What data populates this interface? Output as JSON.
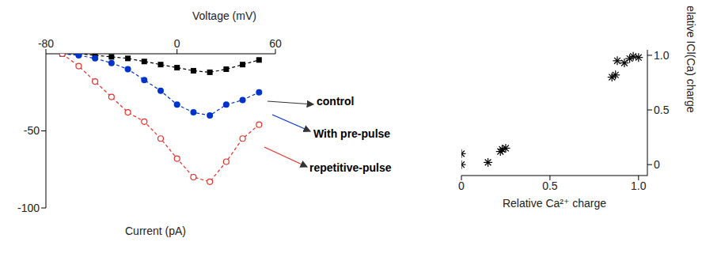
{
  "chart_data": [
    {
      "type": "line",
      "x_label": "Voltage (mV)",
      "y_label": "Current (pA)",
      "x": [
        -70,
        -60,
        -50,
        -40,
        -30,
        -20,
        -10,
        0,
        10,
        20,
        30,
        40,
        50
      ],
      "xlim": [
        -80,
        60
      ],
      "xticks": [
        -80,
        0,
        60
      ],
      "ylim": [
        -100,
        0
      ],
      "yticks": [
        -100,
        -50
      ],
      "grid": false,
      "series": [
        {
          "name": "control",
          "color": "#000000",
          "marker": "square",
          "line_style": "dashed",
          "values": [
            0,
            0,
            -1,
            -2,
            -3,
            -5,
            -7,
            -9,
            -11,
            -12,
            -10,
            -7,
            -4
          ]
        },
        {
          "name": "With pre-pulse",
          "color": "#0033cc",
          "marker": "circle",
          "line_style": "dashed",
          "values": [
            0,
            -1,
            -3,
            -6,
            -10,
            -17,
            -24,
            -33,
            -38,
            -40,
            -33,
            -30,
            -25
          ]
        },
        {
          "name": "repetitive-pulse",
          "color": "#e8302a",
          "marker": "open_circle",
          "line_style": "dashed",
          "values": [
            0,
            -8,
            -18,
            -28,
            -38,
            -44,
            -55,
            -68,
            -80,
            -83,
            -70,
            -55,
            -46
          ]
        }
      ]
    },
    {
      "type": "scatter",
      "x_label": "Relative Ca²⁺ charge",
      "y_label": "Relative ICl(Ca) charge",
      "x": [
        0,
        0,
        0.15,
        0.22,
        0.23,
        0.25,
        0.85,
        0.87,
        0.88,
        0.92,
        0.95,
        0.97,
        1.0
      ],
      "values": [
        0,
        0.1,
        0.02,
        0.12,
        0.14,
        0.15,
        0.8,
        0.82,
        0.95,
        0.93,
        0.97,
        0.99,
        0.98
      ],
      "xlim": [
        0,
        1.05
      ],
      "xticks": [
        0,
        0.5,
        {
          "value": 1,
          "label": "1.0"
        }
      ],
      "ylim": [
        -0.1,
        1.05
      ],
      "yticks": [
        0,
        0.5,
        {
          "value": 1,
          "label": "1.0"
        }
      ],
      "color": "#000000",
      "marker": "asterisk",
      "grid": false
    }
  ]
}
